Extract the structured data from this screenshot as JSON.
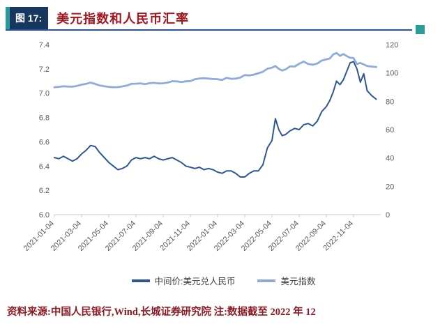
{
  "header": {
    "figure_label": "图 17:",
    "title": "美元指数和人民币汇率"
  },
  "footer": {
    "source_note": "资料来源:中国人民银行,Wind,长城证券研究院  注:数据截至 2022 年 12"
  },
  "colors": {
    "accent_teal": "#2a9d9b",
    "header_navy": "#17375e",
    "title_red": "#a5151d",
    "rule_blue": "#2b4fa3",
    "series_dark_blue": "#2f5597",
    "series_light_blue": "#8faadc",
    "axis_text": "#595959"
  },
  "chart_data": {
    "type": "line",
    "title": "美元指数和人民币汇率",
    "grid": false,
    "legend_position": "bottom",
    "x_total_months": 24,
    "x_tick_labels": [
      "2021-01-04",
      "2021-03-04",
      "2021-05-04",
      "2021-07-04",
      "2021-09-04",
      "2021-11-04",
      "2022-01-04",
      "2022-03-04",
      "2022-05-04",
      "2022-07-04",
      "2022-09-04",
      "2022-11-04"
    ],
    "x_tick_months": [
      0,
      2,
      4,
      6,
      8,
      10,
      12,
      14,
      16,
      18,
      20,
      22
    ],
    "left_axis": {
      "min": 6.0,
      "max": 7.4,
      "ticks": [
        "6.0",
        "6.2",
        "6.4",
        "6.6",
        "6.8",
        "7.0",
        "7.2",
        "7.4"
      ]
    },
    "right_axis": {
      "min": 0,
      "max": 120,
      "ticks": [
        "0",
        "20",
        "40",
        "60",
        "80",
        "100",
        "120"
      ]
    },
    "points_per_month": [
      3,
      3,
      3,
      3,
      3,
      3,
      3,
      3,
      3,
      3,
      3,
      3,
      3,
      3,
      3,
      3,
      4,
      3,
      3,
      3,
      4,
      4,
      4,
      3
    ],
    "series": [
      {
        "name": "中间价:美元兑人民币",
        "axis": "left",
        "color": "#2f5597",
        "width": 2,
        "values": [
          6.47,
          6.46,
          6.48,
          6.46,
          6.44,
          6.46,
          6.5,
          6.53,
          6.57,
          6.56,
          6.51,
          6.47,
          6.43,
          6.4,
          6.37,
          6.38,
          6.4,
          6.45,
          6.47,
          6.46,
          6.47,
          6.46,
          6.48,
          6.46,
          6.45,
          6.46,
          6.47,
          6.45,
          6.43,
          6.4,
          6.39,
          6.38,
          6.39,
          6.37,
          6.38,
          6.37,
          6.35,
          6.34,
          6.36,
          6.36,
          6.34,
          6.31,
          6.31,
          6.34,
          6.36,
          6.36,
          6.41,
          6.55,
          6.61,
          6.79,
          6.7,
          6.65,
          6.66,
          6.69,
          6.71,
          6.7,
          6.74,
          6.75,
          6.73,
          6.77,
          6.85,
          6.89,
          6.94,
          7.01,
          7.1,
          7.07,
          7.11,
          7.18,
          7.25,
          7.26,
          7.2,
          7.09,
          7.16,
          7.02,
          6.98,
          6.95
        ]
      },
      {
        "name": "美元指数",
        "axis": "right",
        "color": "#8faadc",
        "width": 2.8,
        "values": [
          89.9,
          90.2,
          90.6,
          90.4,
          90.3,
          90.9,
          91.7,
          92.3,
          93.2,
          92.2,
          91.2,
          90.6,
          90.2,
          89.9,
          90.0,
          90.5,
          91.1,
          92.3,
          92.4,
          92.6,
          92.1,
          92.8,
          93.0,
          92.6,
          92.7,
          93.2,
          94.2,
          94.0,
          93.6,
          94.1,
          94.3,
          95.5,
          96.1,
          96.3,
          96.0,
          95.7,
          95.6,
          95.0,
          96.6,
          95.8,
          96.0,
          96.7,
          98.5,
          98.2,
          98.8,
          99.8,
          100.8,
          103.0,
          103.7,
          104.9,
          102.9,
          101.7,
          102.5,
          104.7,
          104.5,
          106.5,
          108.0,
          106.4,
          105.8,
          106.6,
          108.8,
          109.6,
          110.2,
          113.0,
          114.1,
          112.1,
          113.3,
          111.9,
          110.7,
          110.5,
          106.3,
          107.0,
          106.0,
          104.9,
          104.5,
          104.2
        ]
      }
    ]
  }
}
